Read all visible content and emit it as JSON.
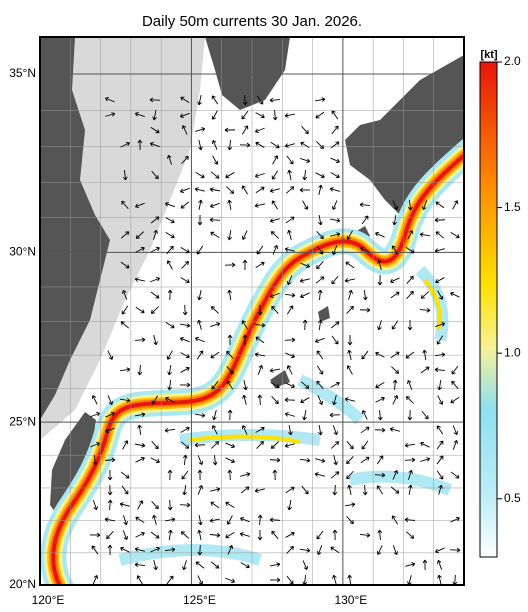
{
  "map": {
    "title": "Daily 50m currents 30 Jan. 2026.",
    "lonlim": [
      120,
      134
    ],
    "latlim": [
      20,
      36
    ],
    "lon_ticks": [
      {
        "value": 120,
        "label": "120°E"
      },
      {
        "value": 125,
        "label": "125°E"
      },
      {
        "value": 130,
        "label": "130°E"
      }
    ],
    "lat_ticks": [
      {
        "value": 35,
        "label": "35°N"
      },
      {
        "value": 30,
        "label": "30°N"
      },
      {
        "value": 25,
        "label": "25°N"
      },
      {
        "value": 20,
        "label": "20°N"
      }
    ],
    "colorbar": {
      "unit": "[kt]",
      "lim": [
        0.3,
        2.0
      ],
      "ticks": [
        0.5,
        {
          "value": 1,
          "label": "1.0"
        },
        1.5,
        {
          "value": 2,
          "label": "2.0"
        }
      ]
    }
  }
}
